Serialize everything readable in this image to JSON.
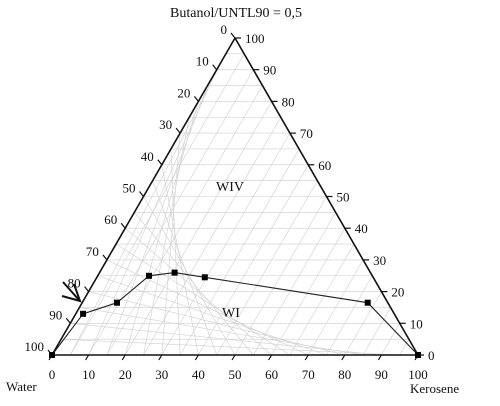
{
  "chart_data": {
    "type": "ternary-scatter",
    "title": "Butanol/UNTL90 = 0,5",
    "corner_labels": {
      "bottom_left": "Water",
      "bottom_right": "Kerosene"
    },
    "region_labels": [
      "WIV",
      "WI"
    ],
    "ticks": {
      "bottom": [
        "0",
        "10",
        "20",
        "30",
        "40",
        "50",
        "60",
        "70",
        "80",
        "90",
        "100"
      ],
      "right": [
        "0",
        "10",
        "20",
        "30",
        "40",
        "50",
        "60",
        "70",
        "80",
        "90",
        "100"
      ],
      "left": [
        "0",
        "10",
        "20",
        "30",
        "40",
        "50",
        "60",
        "70",
        "80",
        "90",
        "100"
      ]
    },
    "grid": true,
    "series": [
      {
        "points": [
          {
            "kerosene": 0,
            "top": 0
          },
          {
            "kerosene": 2,
            "top": 13
          },
          {
            "kerosene": 9.5,
            "top": 16.5
          },
          {
            "kerosene": 14,
            "top": 25
          },
          {
            "kerosene": 20.5,
            "top": 26
          },
          {
            "kerosene": 29.5,
            "top": 24.5
          },
          {
            "kerosene": 78,
            "top": 16.5
          },
          {
            "kerosene": 100,
            "top": 0
          }
        ]
      }
    ],
    "annotation": "arrow-pointing-to-boundary-point"
  },
  "colors": {
    "grid": "#cfcfcf",
    "axis": "#111111",
    "marker": "#000000",
    "line": "#222222"
  }
}
